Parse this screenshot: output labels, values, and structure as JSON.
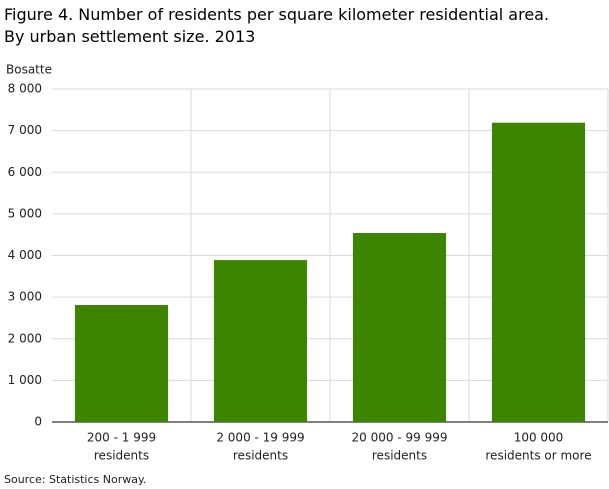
{
  "chart_data": {
    "type": "bar",
    "title": "Figure 4. Number of residents per square kilometer residential area. By urban settlement size. 2013",
    "y_label": "Bosatte",
    "source": "Source: Statistics Norway.",
    "categories": [
      [
        "200 - 1 999",
        "residents"
      ],
      [
        "2 000 - 19 999",
        "residents"
      ],
      [
        "20 000 - 99 999",
        "residents"
      ],
      [
        "100 000",
        "residents or more"
      ]
    ],
    "values": [
      2810,
      3890,
      4540,
      7190
    ],
    "color": "#3d8400",
    "ylim": [
      0,
      8000
    ],
    "yticks": [
      0,
      {
        "value": 1000,
        "label": "1 000"
      },
      {
        "value": 2000,
        "label": "2 000"
      },
      {
        "value": 3000,
        "label": "3 000"
      },
      {
        "value": 4000,
        "label": "4 000"
      },
      {
        "value": 5000,
        "label": "5 000"
      },
      {
        "value": 6000,
        "label": "6 000"
      },
      {
        "value": 7000,
        "label": "7 000"
      },
      {
        "value": 8000,
        "label": "8 000"
      }
    ],
    "grid": true
  }
}
